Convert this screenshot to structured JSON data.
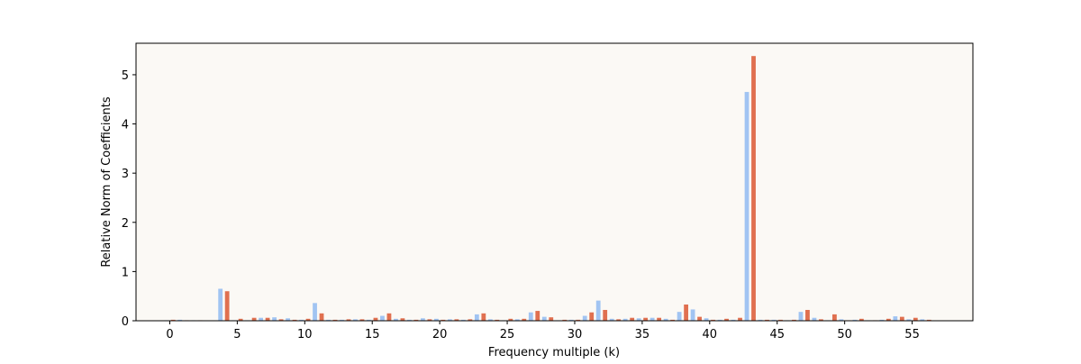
{
  "chart_data": {
    "type": "bar",
    "xlabel": "Frequency multiple (k)",
    "ylabel": "Relative Norm of Coefficients",
    "x": [
      0,
      1,
      2,
      3,
      4,
      5,
      6,
      7,
      8,
      9,
      10,
      11,
      12,
      13,
      14,
      15,
      16,
      17,
      18,
      19,
      20,
      21,
      22,
      23,
      24,
      25,
      26,
      27,
      28,
      29,
      30,
      31,
      32,
      33,
      34,
      35,
      36,
      37,
      38,
      39,
      40,
      41,
      42,
      43,
      44,
      45,
      46,
      47,
      48,
      49,
      50,
      51,
      52,
      53,
      54,
      55,
      56
    ],
    "series": [
      {
        "color": "#a1c4f2",
        "values": [
          0.01,
          0.02,
          0.01,
          0.0,
          0.65,
          0.01,
          0.01,
          0.06,
          0.07,
          0.05,
          0.02,
          0.36,
          0.02,
          0.02,
          0.03,
          0.02,
          0.1,
          0.04,
          0.02,
          0.05,
          0.04,
          0.03,
          0.02,
          0.13,
          0.03,
          0.01,
          0.03,
          0.17,
          0.08,
          0.01,
          0.02,
          0.1,
          0.41,
          0.04,
          0.04,
          0.05,
          0.06,
          0.04,
          0.18,
          0.23,
          0.05,
          0.02,
          0.02,
          4.65,
          0.02,
          0.02,
          0.01,
          0.18,
          0.06,
          0.01,
          0.03,
          0.02,
          0.01,
          0.02,
          0.09,
          0.03,
          0.03
        ]
      },
      {
        "color": "#e07050",
        "values": [
          0.02,
          0.01,
          0.01,
          0.0,
          0.6,
          0.04,
          0.06,
          0.06,
          0.03,
          0.02,
          0.04,
          0.15,
          0.02,
          0.03,
          0.03,
          0.06,
          0.15,
          0.05,
          0.02,
          0.03,
          0.02,
          0.03,
          0.03,
          0.15,
          0.02,
          0.04,
          0.04,
          0.2,
          0.07,
          0.02,
          0.02,
          0.17,
          0.22,
          0.03,
          0.06,
          0.06,
          0.06,
          0.02,
          0.33,
          0.08,
          0.02,
          0.04,
          0.06,
          5.38,
          0.02,
          0.02,
          0.02,
          0.22,
          0.03,
          0.13,
          0.01,
          0.04,
          0.01,
          0.04,
          0.08,
          0.06,
          0.02
        ]
      }
    ],
    "xlim": [
      -2.5,
      59.5
    ],
    "ylim": [
      0,
      5.64
    ],
    "xticks": [
      0,
      5,
      10,
      15,
      20,
      25,
      30,
      35,
      40,
      45,
      50,
      55
    ],
    "yticks": [
      0,
      1,
      2,
      3,
      4,
      5
    ],
    "background": "#fbf9f5"
  }
}
